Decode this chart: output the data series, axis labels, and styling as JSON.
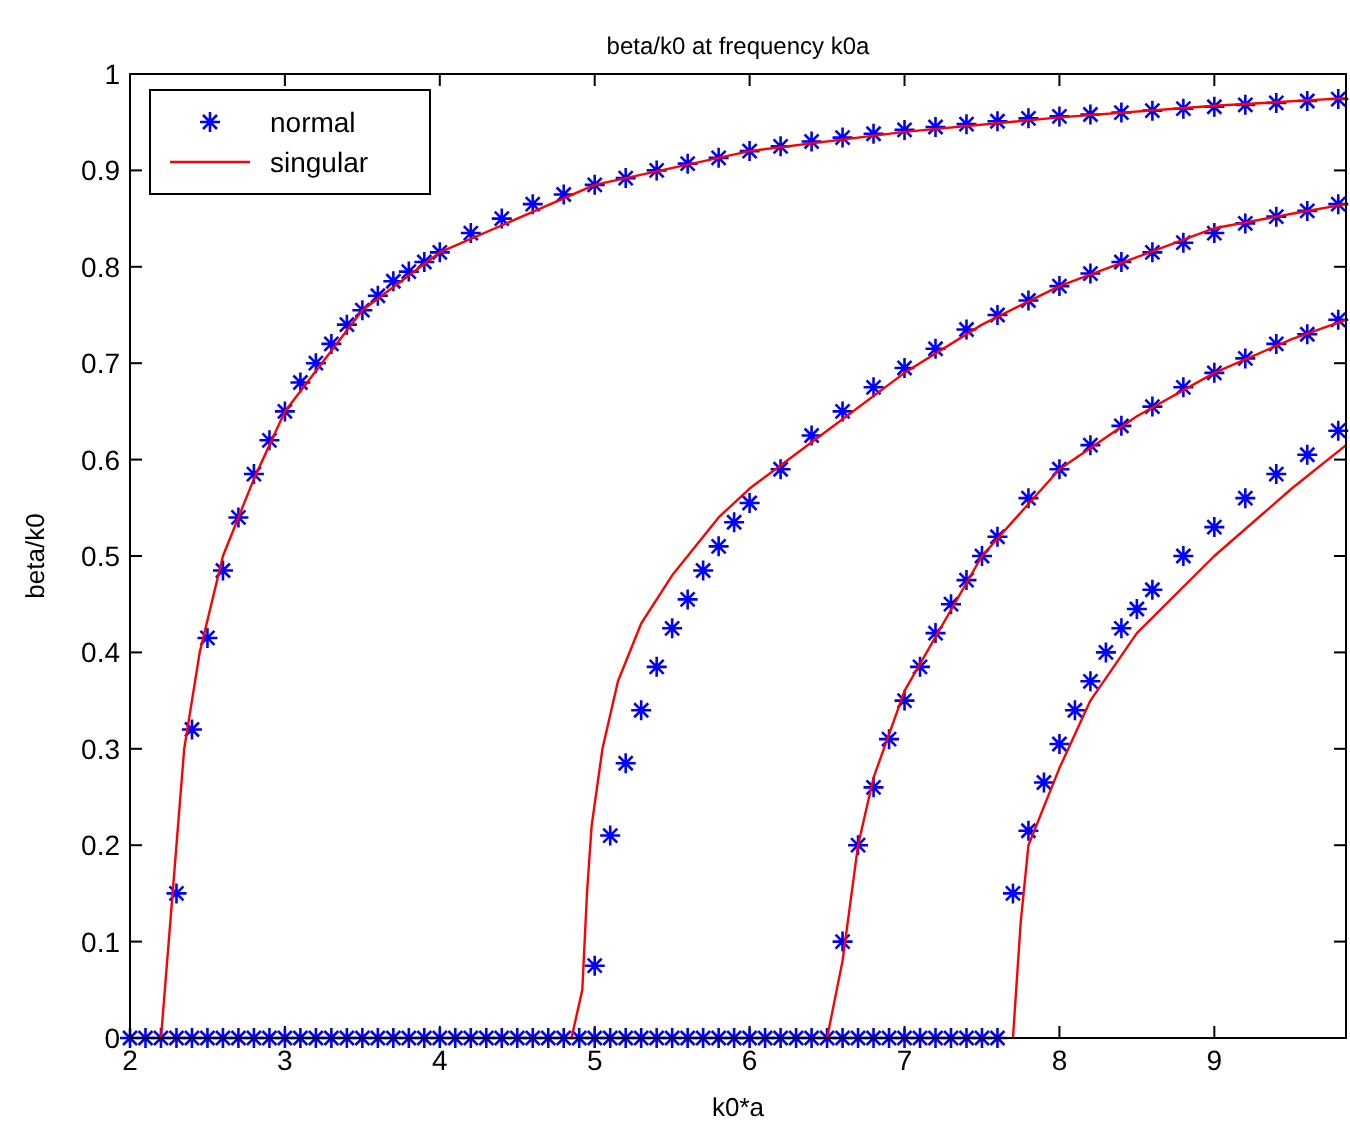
{
  "chart_data": {
    "type": "scatter",
    "title": "beta/k0 at frequency k0a",
    "xlabel": "k0*a",
    "ylabel": "beta/k0",
    "xlim": [
      2,
      9.85
    ],
    "ylim": [
      0,
      1
    ],
    "xticks": [
      2,
      3,
      4,
      5,
      6,
      7,
      8,
      9
    ],
    "yticks": [
      0,
      0.1,
      0.2,
      0.3,
      0.4,
      0.5,
      0.6,
      0.7,
      0.8,
      0.9,
      1
    ],
    "grid": false,
    "legend": "top left",
    "series": [
      {
        "name": "normal",
        "marker": "cross",
        "color": "#0000ff",
        "x": [
          2.0,
          2.1,
          2.2,
          2.3,
          2.4,
          2.5,
          2.6,
          2.7,
          2.8,
          2.9,
          3.0,
          3.1,
          3.2,
          3.3,
          3.4,
          3.5,
          3.6,
          3.7,
          3.8,
          3.9,
          4.0,
          4.1,
          4.2,
          4.3,
          4.4,
          4.5,
          4.6,
          4.7,
          4.8,
          4.9,
          5.0,
          5.1,
          5.2,
          5.3,
          5.4,
          5.5,
          5.6,
          5.7,
          5.8,
          5.9,
          6.0,
          6.1,
          6.2,
          6.3,
          6.4,
          6.5,
          6.6,
          6.7,
          6.8,
          6.9,
          7.0,
          7.1,
          7.2,
          7.3,
          7.4,
          7.5,
          7.6,
          2.3,
          2.4,
          2.5,
          2.6,
          2.7,
          2.8,
          2.9,
          3.0,
          3.1,
          3.2,
          3.3,
          3.4,
          3.5,
          3.6,
          3.7,
          3.8,
          3.9,
          4.0,
          4.2,
          4.4,
          4.6,
          4.8,
          5.0,
          5.2,
          5.4,
          5.6,
          5.8,
          6.0,
          6.2,
          6.4,
          6.6,
          6.8,
          7.0,
          7.2,
          7.4,
          7.6,
          7.8,
          8.0,
          8.2,
          8.4,
          8.6,
          8.8,
          9.0,
          9.2,
          9.4,
          9.6,
          9.8,
          5.0,
          5.1,
          5.2,
          5.3,
          5.4,
          5.5,
          5.6,
          5.7,
          5.8,
          5.9,
          6.0,
          6.2,
          6.4,
          6.6,
          6.8,
          7.0,
          7.2,
          7.4,
          7.6,
          7.8,
          8.0,
          8.2,
          8.4,
          8.6,
          8.8,
          9.0,
          9.2,
          9.4,
          9.6,
          9.8,
          6.6,
          6.7,
          6.8,
          6.9,
          7.0,
          7.1,
          7.2,
          7.3,
          7.4,
          7.5,
          7.6,
          7.8,
          8.0,
          8.2,
          8.4,
          8.6,
          8.8,
          9.0,
          9.2,
          9.4,
          9.6,
          9.8,
          7.7,
          7.8,
          7.9,
          8.0,
          8.1,
          8.2,
          8.3,
          8.4,
          8.5,
          8.6,
          8.8,
          9.0,
          9.2,
          9.4,
          9.6,
          9.8
        ],
        "values": [
          0,
          0,
          0,
          0,
          0,
          0,
          0,
          0,
          0,
          0,
          0,
          0,
          0,
          0,
          0,
          0,
          0,
          0,
          0,
          0,
          0,
          0,
          0,
          0,
          0,
          0,
          0,
          0,
          0,
          0,
          0,
          0,
          0,
          0,
          0,
          0,
          0,
          0,
          0,
          0,
          0,
          0,
          0,
          0,
          0,
          0,
          0,
          0,
          0,
          0,
          0,
          0,
          0,
          0,
          0,
          0,
          0,
          0.15,
          0.32,
          0.415,
          0.485,
          0.54,
          0.585,
          0.62,
          0.65,
          0.68,
          0.7,
          0.72,
          0.74,
          0.755,
          0.77,
          0.785,
          0.795,
          0.805,
          0.815,
          0.835,
          0.85,
          0.865,
          0.875,
          0.885,
          0.892,
          0.9,
          0.907,
          0.913,
          0.92,
          0.925,
          0.93,
          0.934,
          0.938,
          0.942,
          0.945,
          0.948,
          0.951,
          0.954,
          0.956,
          0.958,
          0.96,
          0.962,
          0.964,
          0.966,
          0.968,
          0.97,
          0.972,
          0.974,
          0.075,
          0.21,
          0.285,
          0.34,
          0.385,
          0.425,
          0.455,
          0.485,
          0.51,
          0.535,
          0.555,
          0.59,
          0.625,
          0.65,
          0.675,
          0.695,
          0.715,
          0.735,
          0.75,
          0.765,
          0.78,
          0.793,
          0.805,
          0.815,
          0.825,
          0.835,
          0.845,
          0.852,
          0.858,
          0.865,
          0.1,
          0.2,
          0.26,
          0.31,
          0.35,
          0.385,
          0.42,
          0.45,
          0.475,
          0.5,
          0.52,
          0.56,
          0.59,
          0.615,
          0.635,
          0.655,
          0.675,
          0.69,
          0.705,
          0.72,
          0.73,
          0.745,
          0.15,
          0.215,
          0.265,
          0.305,
          0.34,
          0.37,
          0.4,
          0.425,
          0.445,
          0.465,
          0.5,
          0.53,
          0.56,
          0.585,
          0.605,
          0.63
        ]
      },
      {
        "name": "singular",
        "type": "line",
        "marker": "none",
        "line_style": "solid",
        "color": "#ff0000",
        "x": [
          2.2,
          2.25,
          2.3,
          2.35,
          2.45,
          2.6,
          2.8,
          3.0,
          3.5,
          4.0,
          5.0,
          6.0,
          7.0,
          8.0,
          9.0,
          9.85
        ],
        "values": [
          0,
          0.1,
          0.2,
          0.3,
          0.4,
          0.5,
          0.58,
          0.65,
          0.755,
          0.815,
          0.885,
          0.92,
          0.94,
          0.955,
          0.967,
          0.975
        ]
      },
      {
        "type": "line",
        "marker": "none",
        "line_style": "solid",
        "color": "#ff0000",
        "x": [
          4.85,
          4.92,
          4.95,
          4.98,
          5.05,
          5.15,
          5.3,
          5.5,
          5.8,
          6.0,
          6.5,
          7.0,
          7.5,
          8.0,
          8.5,
          9.0,
          9.5,
          9.85
        ],
        "values": [
          0,
          0.05,
          0.15,
          0.22,
          0.3,
          0.37,
          0.43,
          0.48,
          0.54,
          0.57,
          0.63,
          0.69,
          0.74,
          0.78,
          0.81,
          0.84,
          0.855,
          0.865
        ]
      },
      {
        "type": "line",
        "marker": "none",
        "line_style": "solid",
        "color": "#ff0000",
        "x": [
          6.5,
          6.6,
          6.7,
          6.8,
          7.0,
          7.5,
          8.0,
          8.5,
          9.0,
          9.5,
          9.85
        ],
        "values": [
          0,
          0.08,
          0.2,
          0.27,
          0.36,
          0.5,
          0.59,
          0.645,
          0.69,
          0.725,
          0.745
        ]
      },
      {
        "type": "line",
        "marker": "none",
        "line_style": "solid",
        "color": "#ff0000",
        "x": [
          7.7,
          7.75,
          7.8,
          7.9,
          8.0,
          8.2,
          8.5,
          9.0,
          9.5,
          9.85
        ],
        "values": [
          0,
          0.12,
          0.2,
          0.24,
          0.28,
          0.35,
          0.42,
          0.5,
          0.57,
          0.615
        ]
      }
    ]
  }
}
